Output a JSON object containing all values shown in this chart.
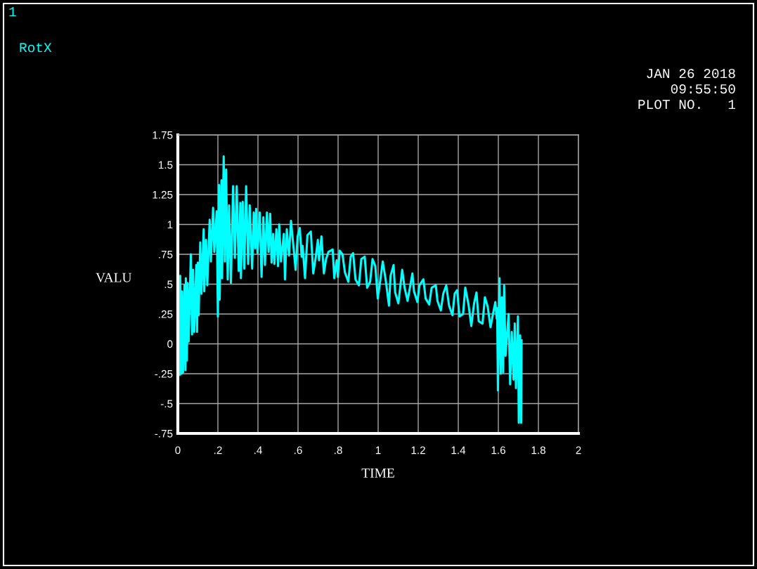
{
  "chart_data": {
    "type": "line",
    "xlabel": "TIME",
    "ylabel": "VALU",
    "annotations": [
      "1",
      "JAN 26 2018",
      "09:55:50",
      "PLOT NO.   1"
    ],
    "x": [
      0.0,
      0.002,
      0.009,
      0.012,
      0.018,
      0.021,
      0.026,
      0.033,
      0.038,
      0.04,
      0.045,
      0.049,
      0.054,
      0.065,
      0.071,
      0.076,
      0.082,
      0.092,
      0.096,
      0.1,
      0.104,
      0.112,
      0.118,
      0.129,
      0.132,
      0.141,
      0.147,
      0.159,
      0.165,
      0.176,
      0.182,
      0.194,
      0.2,
      0.206,
      0.209,
      0.218,
      0.221,
      0.229,
      0.235,
      0.241,
      0.249,
      0.256,
      0.265,
      0.276,
      0.285,
      0.294,
      0.304,
      0.312,
      0.315,
      0.324,
      0.332,
      0.341,
      0.351,
      0.359,
      0.371,
      0.379,
      0.386,
      0.391,
      0.398,
      0.409,
      0.418,
      0.427,
      0.435,
      0.445,
      0.453,
      0.461,
      0.468,
      0.476,
      0.482,
      0.492,
      0.5,
      0.506,
      0.515,
      0.529,
      0.535,
      0.544,
      0.555,
      0.565,
      0.588,
      0.598,
      0.609,
      0.618,
      0.623,
      0.635,
      0.647,
      0.664,
      0.676,
      0.688,
      0.699,
      0.705,
      0.717,
      0.729,
      0.74,
      0.752,
      0.773,
      0.781,
      0.793,
      0.799,
      0.808,
      0.822,
      0.834,
      0.851,
      0.863,
      0.875,
      0.887,
      0.904,
      0.916,
      0.933,
      0.945,
      0.96,
      0.972,
      0.986,
      0.998,
      1.009,
      1.023,
      1.039,
      1.054,
      1.062,
      1.077,
      1.085,
      1.101,
      1.12,
      1.132,
      1.147,
      1.171,
      1.179,
      1.196,
      1.206,
      1.226,
      1.237,
      1.255,
      1.267,
      1.288,
      1.296,
      1.313,
      1.325,
      1.34,
      1.354,
      1.371,
      1.382,
      1.394,
      1.406,
      1.424,
      1.435,
      1.451,
      1.465,
      1.479,
      1.491,
      1.502,
      1.521,
      1.533,
      1.547,
      1.561,
      1.571,
      1.585,
      1.592,
      1.594,
      1.598,
      1.606,
      1.612,
      1.618,
      1.624,
      1.629,
      1.636,
      1.651,
      1.659,
      1.667,
      1.676,
      1.682,
      1.688,
      1.698,
      1.702,
      1.709,
      1.714,
      1.716
    ],
    "series": [
      {
        "name": "RotX",
        "color": "#00ffff",
        "values": [
          0.0,
          0.56,
          -0.26,
          0.57,
          -0.25,
          0.44,
          -0.24,
          0.49,
          -0.22,
          0.55,
          -0.14,
          0.51,
          0.02,
          0.75,
          0.08,
          0.62,
          0.1,
          0.66,
          0.1,
          0.68,
          0.24,
          0.85,
          0.42,
          0.96,
          0.44,
          0.87,
          0.49,
          1.04,
          0.69,
          1.14,
          0.77,
          1.11,
          0.23,
          1.33,
          0.37,
          1.37,
          0.55,
          1.57,
          0.69,
          1.46,
          0.54,
          1.16,
          0.51,
          1.32,
          0.72,
          1.32,
          0.61,
          1.18,
          0.55,
          1.19,
          0.63,
          1.32,
          0.67,
          1.16,
          0.63,
          1.1,
          0.8,
          1.13,
          0.76,
          1.1,
          0.56,
          1.06,
          0.66,
          1.1,
          0.77,
          1.09,
          0.68,
          0.92,
          0.67,
          0.96,
          0.65,
          1.0,
          0.69,
          0.92,
          0.54,
          0.96,
          0.74,
          1.03,
          0.62,
          0.9,
          0.97,
          0.73,
          0.82,
          0.55,
          0.91,
          0.94,
          0.59,
          0.72,
          0.87,
          0.7,
          0.9,
          0.59,
          0.71,
          0.77,
          0.79,
          0.55,
          0.7,
          0.56,
          0.78,
          0.75,
          0.6,
          0.52,
          0.73,
          0.76,
          0.54,
          0.49,
          0.71,
          0.73,
          0.47,
          0.52,
          0.71,
          0.65,
          0.38,
          0.51,
          0.69,
          0.52,
          0.32,
          0.57,
          0.66,
          0.43,
          0.34,
          0.62,
          0.47,
          0.36,
          0.59,
          0.44,
          0.35,
          0.49,
          0.54,
          0.38,
          0.33,
          0.47,
          0.49,
          0.36,
          0.28,
          0.42,
          0.49,
          0.32,
          0.24,
          0.42,
          0.45,
          0.23,
          0.25,
          0.47,
          0.33,
          0.15,
          0.34,
          0.43,
          0.19,
          0.17,
          0.39,
          0.31,
          0.14,
          0.23,
          0.35,
          0.21,
          0.3,
          -0.39,
          0.55,
          -0.25,
          0.39,
          -0.24,
          0.49,
          -0.1,
          0.25,
          -0.34,
          0.1,
          -0.3,
          0.17,
          -0.37,
          0.23,
          -0.66,
          0.07,
          -0.66,
          0.03
        ]
      }
    ],
    "xlim": [
      0,
      2
    ],
    "ylim": [
      -0.75,
      1.75
    ],
    "xticks": [
      0,
      {
        "value": 0.2,
        "label": ".2"
      },
      {
        "value": 0.4,
        "label": ".4"
      },
      {
        "value": 0.6,
        "label": ".6"
      },
      {
        "value": 0.8,
        "label": ".8"
      },
      1,
      1.2,
      1.4,
      1.6,
      1.8,
      2
    ],
    "yticks": [
      {
        "value": -0.75,
        "label": "-.75"
      },
      {
        "value": -0.5,
        "label": "-.5"
      },
      {
        "value": -0.25,
        "label": "-.25"
      },
      0,
      {
        "value": 0.25,
        "label": ".25"
      },
      {
        "value": 0.5,
        "label": ".5"
      },
      {
        "value": 0.75,
        "label": ".75"
      },
      1,
      1.25,
      1.5,
      1.75
    ],
    "grid": true,
    "legend": "top left"
  }
}
